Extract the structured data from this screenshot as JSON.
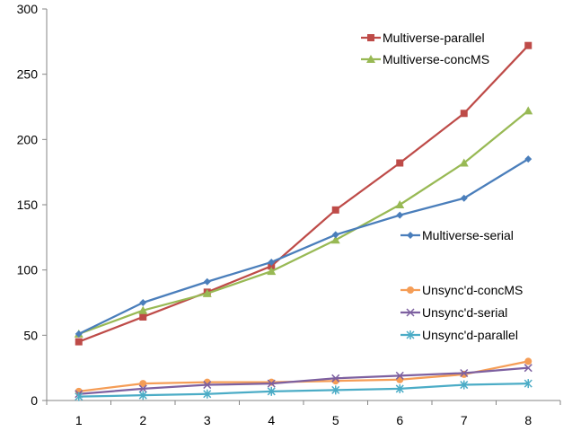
{
  "chart_data": {
    "type": "line",
    "title": "",
    "xlabel": "",
    "ylabel": "",
    "x": [
      1,
      2,
      3,
      4,
      5,
      6,
      7,
      8
    ],
    "xlim": [
      0.5,
      8.5
    ],
    "ylim": [
      0,
      300
    ],
    "yticks": [
      0,
      50,
      100,
      150,
      200,
      250,
      300
    ],
    "grid": false,
    "series": [
      {
        "name": "Multiverse-parallel",
        "color": "#be4b48",
        "marker": "square",
        "values": [
          45,
          64,
          83,
          103,
          146,
          182,
          220,
          272
        ],
        "legend_group": "upper"
      },
      {
        "name": "Multiverse-concMS",
        "color": "#98b954",
        "marker": "triangle",
        "values": [
          51,
          69,
          82,
          99,
          123,
          150,
          182,
          222
        ],
        "legend_group": "upper"
      },
      {
        "name": "Multiverse-serial",
        "color": "#4a7ebb",
        "marker": "diamond",
        "values": [
          51,
          75,
          91,
          106,
          127,
          142,
          155,
          185
        ],
        "legend_group": "middle"
      },
      {
        "name": "Unsync'd-concMS",
        "color": "#f59d56",
        "marker": "circle",
        "values": [
          7,
          13,
          14,
          14,
          15,
          16,
          20,
          30
        ],
        "legend_group": "lower"
      },
      {
        "name": "Unsync'd-serial",
        "color": "#7d60a0",
        "marker": "x",
        "values": [
          5,
          9,
          12,
          13,
          17,
          19,
          21,
          25
        ],
        "legend_group": "lower"
      },
      {
        "name": "Unsync'd-parallel",
        "color": "#4bacc6",
        "marker": "asterisk",
        "values": [
          3,
          4,
          5,
          7,
          8,
          9,
          12,
          13
        ],
        "legend_group": "lower"
      }
    ]
  }
}
